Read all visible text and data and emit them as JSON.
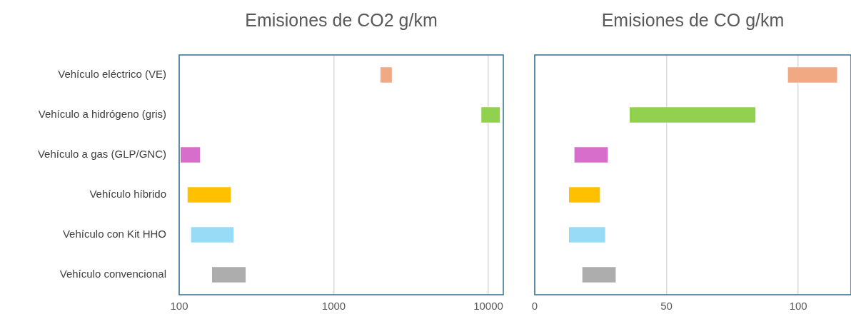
{
  "chart_data": [
    {
      "type": "bar",
      "title": "Emisiones de CO2 g/km",
      "orientation": "horizontal",
      "log": "x",
      "grid": "x",
      "categories": [
        "Vehículo eléctrico (VE)",
        "Vehículo a hidrógeno (gris)",
        "Vehículo a gas (GLP/GNC)",
        "Vehículo híbrido",
        "Vehículo con Kit HHO",
        "Vehículo convencional"
      ],
      "base": [
        2000,
        9000,
        102,
        113,
        119,
        163
      ],
      "values": [
        400,
        3000,
        36,
        105,
        108,
        109
      ],
      "colors": [
        "#f1a983",
        "#92d050",
        "#d86ecc",
        "#ffc000",
        "#97dbf7",
        "#adadad"
      ],
      "xlim": [
        100,
        12500
      ],
      "xticks": [
        100,
        1000,
        10000
      ]
    },
    {
      "type": "bar",
      "title": "Emisiones de CO g/km",
      "orientation": "horizontal",
      "grid": "x",
      "tick_labels": "x",
      "categories": [
        null,
        null,
        null,
        null,
        null,
        null
      ],
      "base": [
        96,
        36,
        15,
        13,
        13,
        18
      ],
      "values": [
        19,
        48,
        13,
        12,
        14,
        13
      ],
      "colors": [
        "#f1a983",
        "#92d050",
        "#d86ecc",
        "#ffc000",
        "#97dbf7",
        "#adadad"
      ],
      "xlim": [
        0,
        120
      ],
      "xticks": [
        0,
        50,
        100
      ]
    }
  ]
}
